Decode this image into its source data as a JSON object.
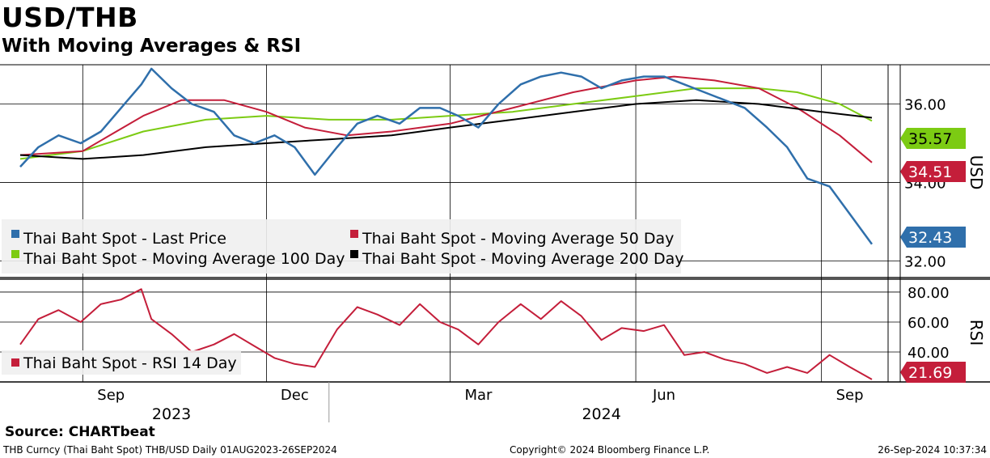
{
  "header": {
    "title": "USD/THB",
    "subtitle": "With Moving Averages & RSI"
  },
  "footer": {
    "source": "Source: CHARTbeat",
    "ticker_info": "THB Curncy (Thai Baht Spot) THB/USD  Daily 01AUG2023-26SEP2024",
    "copyright": "Copyright© 2024 Bloomberg Finance L.P.",
    "timestamp": "26-Sep-2024 10:37:34"
  },
  "colors": {
    "last_price": "#2f6fab",
    "ma50": "#c41e3a",
    "ma100": "#7ccb13",
    "ma200": "#000000",
    "rsi": "#c41e3a"
  },
  "chart_data": [
    {
      "type": "line",
      "panel": "price",
      "ylabel": "USD",
      "ylim": [
        31.6,
        37.0
      ],
      "yticks": [
        "36.00",
        "34.00",
        "32.00"
      ],
      "xlabels": [
        "Sep",
        "Dec",
        "Mar",
        "Jun",
        "Sep"
      ],
      "year_labels": [
        "2023",
        "2024"
      ],
      "grid": true,
      "legend_position": "bottom-left",
      "series": [
        {
          "name": "Thai Baht Spot - Last Price",
          "color": "#2f6fab",
          "last_label": "32.43",
          "x": [
            "2023-08-01",
            "2023-08-10",
            "2023-08-20",
            "2023-08-31",
            "2023-09-10",
            "2023-09-20",
            "2023-09-30",
            "2023-10-05",
            "2023-10-15",
            "2023-10-25",
            "2023-11-05",
            "2023-11-15",
            "2023-11-25",
            "2023-12-05",
            "2023-12-15",
            "2023-12-25",
            "2024-01-05",
            "2024-01-15",
            "2024-01-25",
            "2024-02-05",
            "2024-02-15",
            "2024-02-25",
            "2024-03-05",
            "2024-03-15",
            "2024-03-25",
            "2024-04-05",
            "2024-04-15",
            "2024-04-25",
            "2024-05-05",
            "2024-05-15",
            "2024-05-25",
            "2024-06-05",
            "2024-06-15",
            "2024-06-25",
            "2024-07-05",
            "2024-07-15",
            "2024-07-25",
            "2024-08-05",
            "2024-08-15",
            "2024-08-25",
            "2024-09-05",
            "2024-09-15",
            "2024-09-26"
          ],
          "y": [
            34.4,
            34.9,
            35.2,
            35.0,
            35.3,
            35.9,
            36.5,
            36.9,
            36.4,
            36.0,
            35.8,
            35.2,
            35.0,
            35.2,
            34.9,
            34.2,
            34.9,
            35.5,
            35.7,
            35.5,
            35.9,
            35.9,
            35.7,
            35.4,
            36.0,
            36.5,
            36.7,
            36.8,
            36.7,
            36.4,
            36.6,
            36.7,
            36.7,
            36.5,
            36.3,
            36.1,
            35.9,
            35.4,
            34.9,
            34.1,
            33.9,
            33.2,
            32.43
          ]
        },
        {
          "name": "Thai Baht Spot - Moving Average 50 Day",
          "color": "#c41e3a",
          "last_label": "34.51",
          "x": [
            "2023-08-01",
            "2023-09-01",
            "2023-10-01",
            "2023-10-20",
            "2023-11-10",
            "2023-12-01",
            "2023-12-20",
            "2024-01-10",
            "2024-02-01",
            "2024-03-01",
            "2024-04-01",
            "2024-05-01",
            "2024-06-01",
            "2024-06-20",
            "2024-07-10",
            "2024-08-01",
            "2024-08-20",
            "2024-09-10",
            "2024-09-26"
          ],
          "y": [
            34.7,
            34.8,
            35.7,
            36.1,
            36.1,
            35.8,
            35.4,
            35.2,
            35.3,
            35.5,
            35.9,
            36.3,
            36.6,
            36.7,
            36.6,
            36.4,
            35.9,
            35.2,
            34.51
          ]
        },
        {
          "name": "Thai Baht Spot - Moving Average 100 Day",
          "color": "#7ccb13",
          "last_label": "35.57",
          "x": [
            "2023-08-01",
            "2023-09-01",
            "2023-10-01",
            "2023-11-01",
            "2023-12-01",
            "2024-01-01",
            "2024-02-01",
            "2024-03-01",
            "2024-04-01",
            "2024-05-01",
            "2024-06-01",
            "2024-07-01",
            "2024-08-01",
            "2024-08-20",
            "2024-09-10",
            "2024-09-26"
          ],
          "y": [
            34.6,
            34.8,
            35.3,
            35.6,
            35.7,
            35.6,
            35.6,
            35.7,
            35.8,
            36.0,
            36.2,
            36.4,
            36.4,
            36.3,
            36.0,
            35.57
          ]
        },
        {
          "name": "Thai Baht Spot - Moving Average 200 Day",
          "color": "#000000",
          "last_label": "",
          "x": [
            "2023-08-01",
            "2023-09-01",
            "2023-10-01",
            "2023-11-01",
            "2023-12-01",
            "2024-01-01",
            "2024-02-01",
            "2024-03-01",
            "2024-04-01",
            "2024-05-01",
            "2024-06-01",
            "2024-07-01",
            "2024-08-01",
            "2024-09-01",
            "2024-09-26"
          ],
          "y": [
            34.7,
            34.6,
            34.7,
            34.9,
            35.0,
            35.1,
            35.2,
            35.4,
            35.6,
            35.8,
            36.0,
            36.1,
            36.0,
            35.8,
            35.65
          ]
        }
      ]
    },
    {
      "type": "line",
      "panel": "rsi",
      "ylabel": "RSI",
      "ylim": [
        20,
        87
      ],
      "yticks": [
        "80.00",
        "60.00",
        "40.00"
      ],
      "grid": true,
      "series": [
        {
          "name": "Thai Baht Spot - RSI 14 Day",
          "color": "#c41e3a",
          "last_label": "21.69",
          "x": [
            "2023-08-01",
            "2023-08-10",
            "2023-08-20",
            "2023-08-31",
            "2023-09-10",
            "2023-09-20",
            "2023-09-30",
            "2023-10-05",
            "2023-10-15",
            "2023-10-25",
            "2023-11-05",
            "2023-11-15",
            "2023-11-25",
            "2023-12-05",
            "2023-12-15",
            "2023-12-25",
            "2024-01-05",
            "2024-01-15",
            "2024-01-25",
            "2024-02-05",
            "2024-02-15",
            "2024-02-25",
            "2024-03-05",
            "2024-03-15",
            "2024-03-25",
            "2024-04-05",
            "2024-04-15",
            "2024-04-25",
            "2024-05-05",
            "2024-05-15",
            "2024-05-25",
            "2024-06-05",
            "2024-06-15",
            "2024-06-25",
            "2024-07-05",
            "2024-07-15",
            "2024-07-25",
            "2024-08-05",
            "2024-08-15",
            "2024-08-25",
            "2024-09-05",
            "2024-09-15",
            "2024-09-26"
          ],
          "y": [
            45,
            62,
            68,
            60,
            72,
            75,
            82,
            62,
            52,
            40,
            45,
            52,
            44,
            36,
            32,
            30,
            55,
            70,
            65,
            58,
            72,
            60,
            55,
            45,
            60,
            72,
            62,
            74,
            64,
            48,
            56,
            54,
            58,
            38,
            40,
            35,
            32,
            26,
            30,
            26,
            38,
            30,
            21.69
          ]
        }
      ]
    }
  ]
}
